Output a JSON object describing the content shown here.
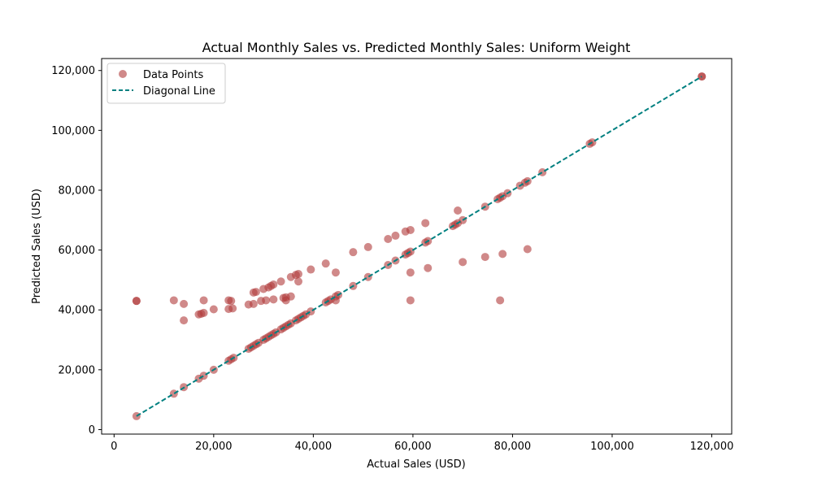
{
  "chart_data": {
    "type": "scatter",
    "title": "Actual Monthly Sales vs. Predicted Monthly Sales: Uniform Weight",
    "xlabel": "Actual Sales (USD)",
    "ylabel": "Predicted Sales (USD)",
    "xlim": [
      -2500,
      124000
    ],
    "ylim": [
      -1500,
      124000
    ],
    "x_ticks": [
      0,
      20000,
      40000,
      60000,
      80000,
      100000,
      120000
    ],
    "x_tick_labels": [
      "0",
      "20,000",
      "40,000",
      "60,000",
      "80,000",
      "100,000",
      "120,000"
    ],
    "y_ticks": [
      0,
      20000,
      40000,
      60000,
      80000,
      100000,
      120000
    ],
    "y_tick_labels": [
      "0",
      "20,000",
      "40,000",
      "60,000",
      "80,000",
      "100,000",
      "120,000"
    ],
    "grid": false,
    "legend_position": "top-left",
    "legend": [
      "Data Points",
      "Diagonal Line"
    ],
    "colors": {
      "points": "#b03a3a",
      "diagonal": "#008080"
    },
    "diagonal": {
      "x": [
        4500,
        118000
      ],
      "y": [
        4500,
        118000
      ],
      "style": "dashed"
    },
    "series": [
      {
        "name": "Data Points",
        "points": [
          [
            4500,
            4500
          ],
          [
            4500,
            43000
          ],
          [
            4500,
            43000
          ],
          [
            12000,
            12000
          ],
          [
            12000,
            43200
          ],
          [
            14000,
            14200
          ],
          [
            14000,
            42000
          ],
          [
            14000,
            36500
          ],
          [
            17000,
            17000
          ],
          [
            17000,
            38500
          ],
          [
            17500,
            38700
          ],
          [
            18000,
            18000
          ],
          [
            18000,
            43200
          ],
          [
            18000,
            39000
          ],
          [
            20000,
            20000
          ],
          [
            20000,
            40200
          ],
          [
            23000,
            23000
          ],
          [
            23000,
            40300
          ],
          [
            23000,
            43200
          ],
          [
            23500,
            23500
          ],
          [
            23500,
            43000
          ],
          [
            23800,
            40500
          ],
          [
            24000,
            24000
          ],
          [
            27000,
            27000
          ],
          [
            27000,
            41800
          ],
          [
            27500,
            27500
          ],
          [
            28000,
            28000
          ],
          [
            28000,
            42000
          ],
          [
            28000,
            45800
          ],
          [
            28500,
            28500
          ],
          [
            28500,
            46000
          ],
          [
            29000,
            29000
          ],
          [
            29500,
            43000
          ],
          [
            30000,
            30000
          ],
          [
            30000,
            47000
          ],
          [
            30500,
            30500
          ],
          [
            30500,
            43200
          ],
          [
            31000,
            31000
          ],
          [
            31000,
            47500
          ],
          [
            31500,
            31500
          ],
          [
            31500,
            48000
          ],
          [
            32000,
            32000
          ],
          [
            32000,
            48500
          ],
          [
            32000,
            43500
          ],
          [
            32500,
            32500
          ],
          [
            33500,
            33500
          ],
          [
            33500,
            49500
          ],
          [
            34000,
            34000
          ],
          [
            34000,
            44000
          ],
          [
            34500,
            34500
          ],
          [
            34500,
            43200
          ],
          [
            34500,
            44200
          ],
          [
            35000,
            35000
          ],
          [
            35500,
            35500
          ],
          [
            35500,
            51000
          ],
          [
            35500,
            44500
          ],
          [
            36500,
            36500
          ],
          [
            36500,
            51700
          ],
          [
            37000,
            37000
          ],
          [
            37000,
            52000
          ],
          [
            37000,
            49500
          ],
          [
            37500,
            37500
          ],
          [
            38000,
            38000
          ],
          [
            38500,
            38500
          ],
          [
            39500,
            39500
          ],
          [
            39500,
            53500
          ],
          [
            42500,
            42500
          ],
          [
            42500,
            55500
          ],
          [
            43000,
            43000
          ],
          [
            43500,
            43500
          ],
          [
            44500,
            44500
          ],
          [
            44500,
            52500
          ],
          [
            44500,
            43200
          ],
          [
            45000,
            45000
          ],
          [
            48000,
            48000
          ],
          [
            48000,
            59300
          ],
          [
            51000,
            51000
          ],
          [
            51000,
            61000
          ],
          [
            55000,
            55000
          ],
          [
            55000,
            63700
          ],
          [
            56500,
            56500
          ],
          [
            56500,
            64800
          ],
          [
            58500,
            58500
          ],
          [
            58500,
            66200
          ],
          [
            59000,
            59000
          ],
          [
            59500,
            59500
          ],
          [
            59500,
            66700
          ],
          [
            59500,
            52500
          ],
          [
            59500,
            43200
          ],
          [
            62500,
            62500
          ],
          [
            62500,
            69000
          ],
          [
            63000,
            63000
          ],
          [
            63000,
            54000
          ],
          [
            68000,
            68000
          ],
          [
            68500,
            68500
          ],
          [
            69000,
            69000
          ],
          [
            69000,
            73200
          ],
          [
            70000,
            70000
          ],
          [
            70000,
            56000
          ],
          [
            74500,
            74500
          ],
          [
            74500,
            57700
          ],
          [
            77000,
            77000
          ],
          [
            77500,
            77500
          ],
          [
            77500,
            43200
          ],
          [
            78000,
            78000
          ],
          [
            78000,
            58700
          ],
          [
            79000,
            79000
          ],
          [
            81500,
            81500
          ],
          [
            82500,
            82500
          ],
          [
            83000,
            83000
          ],
          [
            83000,
            60300
          ],
          [
            86000,
            86000
          ],
          [
            95500,
            95500
          ],
          [
            96000,
            96000
          ],
          [
            118000,
            118000
          ],
          [
            118000,
            118000
          ]
        ]
      }
    ]
  }
}
